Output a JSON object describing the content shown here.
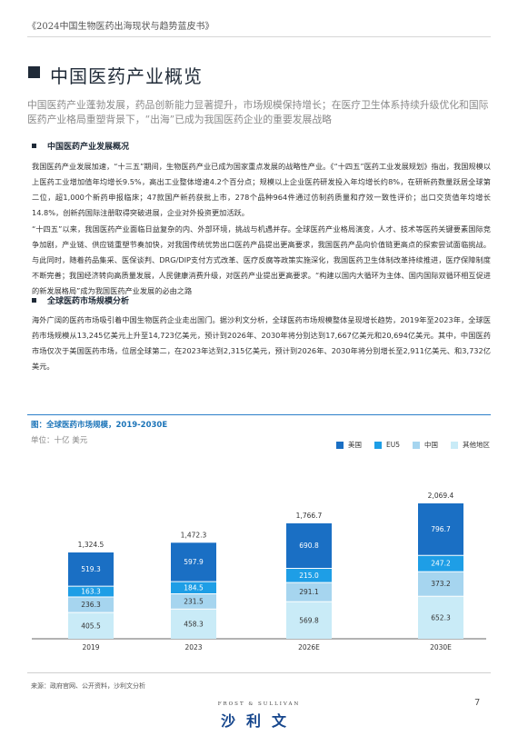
{
  "header": {
    "running_title": "《2024中国生物医药出海现状与趋势蓝皮书》"
  },
  "page": {
    "title": "中国医药产业概览",
    "lead": "中国医药产业蓬勃发展，药品创新能力显著提升，市场规模保持增长；在医疗卫生体系持续升级优化和国际医药产业格局重塑背景下，“出海”已成为我国医药企业的重要发展战略"
  },
  "section1": {
    "title": "中国医药产业发展概况",
    "p1": "我国医药产业发展加速，“十三五”期间，生物医药产业已成为国家重点发展的战略性产业。《“十四五”医药工业发展规划》指出，我国规模以上医药工业增加值年均增长9.5%，高出工业整体增速4.2个百分点；规模以上企业医药研发投入年均增长约8%，在研新药数量跃居全球第二位，超1,000个新药申报临床；47款国产新药获批上市，278个品种964件通过仿制药质量和疗效一致性评价；出口交货值年均增长14.8%，创新药国际注册取得突破进展，企业对外投资更加活跃。",
    "p2": "“十四五”以来，我国医药产业面临日益复杂的内、外部环境，挑战与机遇并存。全球医药产业格局演变，人才、技术等医药关键要素国际竞争加剧，产业链、供应链重塑节奏加快，对我国传统优势出口医药产品提出更高要求，我国医药产品向价值链更高点的探索尝试面临挑战。与此同时，随着药品集采、医保谈判、DRG/DIP支付方式改革、医疗反腐等政策实施深化，我国医药卫生体制改革持续推进，医疗保障制度不断完善；我国经济转向高质量发展，人民健康消费升级，对医药产业提出更高要求。“构建以国内大循环为主体、国内国际双循环相互促进的新发展格局”成为我国医药产业发展的必由之路"
  },
  "section2": {
    "title": "全球医药市场规模分析",
    "p1": "海外广阔的医药市场吸引着中国生物医药企业走出国门。据沙利文分析，全球医药市场规模整体呈现增长趋势，2019年至2023年，全球医药市场规模从13,245亿美元上升至14,723亿美元，预计到2026年、2030年将分别达到17,667亿美元和20,694亿美元。其中，中国医药市场仅次于美国医药市场，位居全球第二，在2023年达到2,315亿美元，预计到2026年、2030年将分别增长至2,911亿美元、和3,732亿美元。"
  },
  "chart_title": "图：全球医药市场规模，2019-2030E",
  "chart_unit": "单位：十亿 美元",
  "chart_data": {
    "type": "bar",
    "stacked": true,
    "categories": [
      "2019",
      "2023",
      "2026E",
      "2030E"
    ],
    "series": [
      {
        "name": "其他地区",
        "values": [
          405.5,
          458.3,
          569.8,
          652.3
        ],
        "color": "#c9ebf7"
      },
      {
        "name": "中国",
        "values": [
          236.3,
          231.5,
          291.1,
          373.2
        ],
        "color": "#a6d5ef"
      },
      {
        "name": "EU5",
        "values": [
          163.3,
          184.5,
          215.0,
          247.2
        ],
        "color": "#1e9ee6"
      },
      {
        "name": "美国",
        "values": [
          519.3,
          597.9,
          690.8,
          796.7
        ],
        "color": "#1a6fc4"
      }
    ],
    "totals": [
      "1,324.5",
      "1,472.3",
      "1,766.7",
      "2,069.4"
    ],
    "legend_order": [
      "美国",
      "EU5",
      "中国",
      "其他地区"
    ],
    "legend_position": "top-right",
    "grid": false
  },
  "footer": {
    "source": "来源：政府官网、公开资料，沙利文分析",
    "page_number": "7",
    "logo_en": "FROST & SULLIVAN",
    "logo_cn": "沙利文"
  }
}
